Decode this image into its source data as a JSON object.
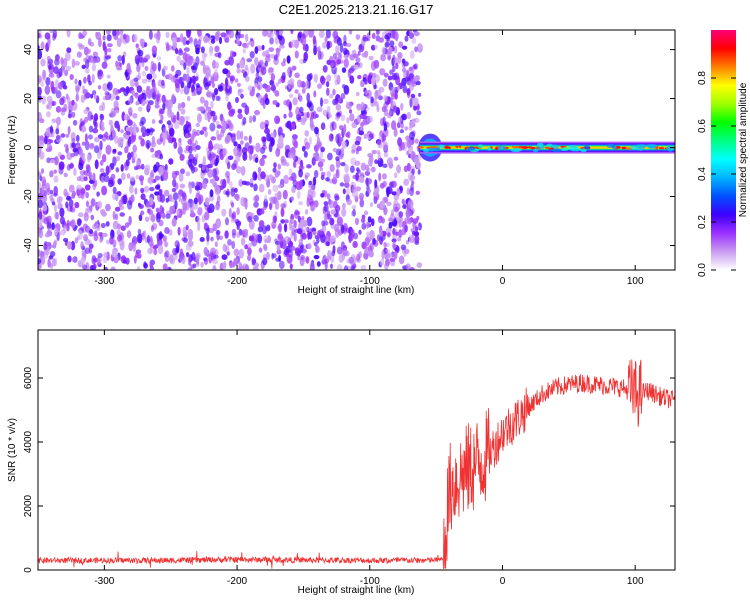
{
  "title": "C2E1.2025.213.21.16.G17",
  "chart_data": [
    {
      "type": "heatmap",
      "xlabel": "Height of straight line (km)",
      "ylabel": "Frequency (Hz)",
      "xlim": [
        -350,
        130
      ],
      "ylim": [
        -50,
        48
      ],
      "xticks": [
        -300,
        -200,
        -100,
        0,
        100
      ],
      "yticks": [
        -40,
        -20,
        0,
        20,
        40
      ],
      "colorbar": {
        "label": "Normalized spectral amplitude",
        "range": [
          0,
          1
        ],
        "ticks": [
          0.0,
          0.2,
          0.4,
          0.6,
          0.8
        ],
        "tick_labels": [
          "0.0",
          "0.2",
          "0.4",
          "0.6",
          "0.8"
        ],
        "colormap": [
          "#ffffff",
          "#c89bf0",
          "#9b30ff",
          "#3c00ff",
          "#0050ff",
          "#00b4ff",
          "#00ffff",
          "#00ff80",
          "#00ff00",
          "#a0ff00",
          "#ffff00",
          "#ff8000",
          "#ff0000",
          "#ff0078"
        ]
      },
      "regions": [
        {
          "x_range": [
            -350,
            -62
          ],
          "freq_range": [
            -50,
            48
          ],
          "description_level": 0.15
        },
        {
          "x_range": [
            -62,
            130
          ],
          "freq_center": 0,
          "level": 0.9
        }
      ]
    },
    {
      "type": "line",
      "xlabel": "Height of straight line (km)",
      "ylabel": "SNR (10 * v/v)",
      "xlim": [
        -350,
        130
      ],
      "ylim": [
        0,
        7500
      ],
      "xticks": [
        -300,
        -200,
        -100,
        0,
        100
      ],
      "yticks": [
        0,
        2000,
        4000,
        6000
      ],
      "color": "#f03232",
      "series": [
        {
          "x": [
            -350,
            -300,
            -250,
            -200,
            -150,
            -100,
            -60,
            -45,
            -40,
            -35,
            -30,
            -20,
            -10,
            0,
            10,
            20,
            30,
            40,
            50,
            60,
            70,
            80,
            90,
            100,
            110,
            120,
            130
          ],
          "y": [
            300,
            300,
            300,
            330,
            310,
            300,
            300,
            320,
            2500,
            2800,
            3000,
            3300,
            3600,
            4300,
            4700,
            5100,
            5500,
            5700,
            5800,
            5850,
            5800,
            5750,
            5700,
            5500,
            5600,
            5400,
            5300
          ]
        }
      ]
    }
  ]
}
